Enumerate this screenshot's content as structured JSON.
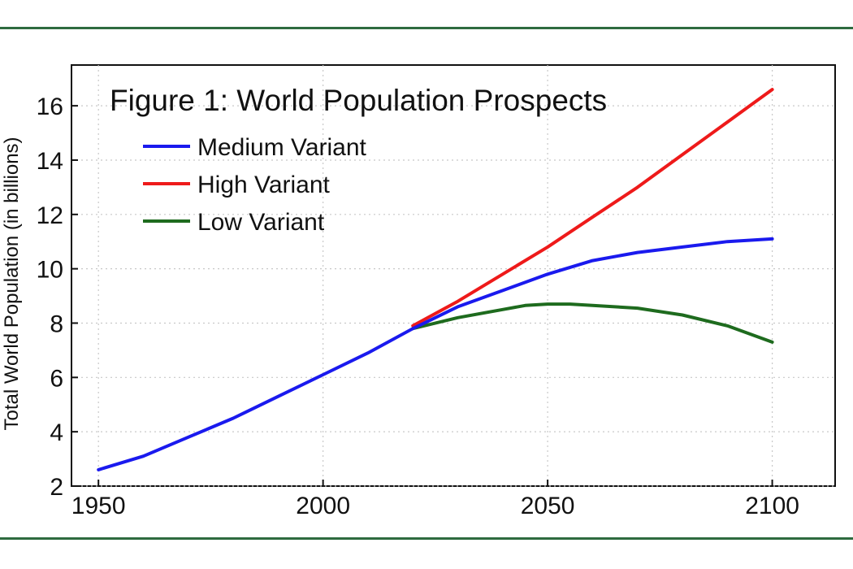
{
  "colors": {
    "frame_rule": "#2e6b3f",
    "medium": "#1a1aee",
    "high": "#ee1a1a",
    "low": "#1e6b1e",
    "grid": "#c8c8c8"
  },
  "chart_data": {
    "type": "line",
    "title": "Figure 1: World Population Prospects",
    "ylabel": "Total World Population (in billions)",
    "xlabel": "",
    "xlim": [
      1944,
      2114
    ],
    "ylim": [
      2,
      17.5
    ],
    "xticks": [
      1950,
      2000,
      2050,
      2100
    ],
    "yticks": [
      2,
      4,
      6,
      8,
      10,
      12,
      14,
      16
    ],
    "grid": true,
    "legend_position": "top-left",
    "series": [
      {
        "name": "Medium Variant",
        "color_key": "medium",
        "x": [
          1950,
          1960,
          1970,
          1980,
          1990,
          2000,
          2010,
          2020,
          2025,
          2030,
          2040,
          2050,
          2060,
          2070,
          2080,
          2090,
          2100
        ],
        "y": [
          2.6,
          3.1,
          3.8,
          4.5,
          5.3,
          6.1,
          6.9,
          7.8,
          8.2,
          8.6,
          9.2,
          9.8,
          10.3,
          10.6,
          10.8,
          11.0,
          11.1
        ]
      },
      {
        "name": "High Variant",
        "color_key": "high",
        "x": [
          2020,
          2030,
          2040,
          2050,
          2060,
          2070,
          2080,
          2090,
          2100
        ],
        "y": [
          7.9,
          8.8,
          9.8,
          10.8,
          11.9,
          13.0,
          14.2,
          15.4,
          16.6
        ]
      },
      {
        "name": "Low Variant",
        "color_key": "low",
        "x": [
          2020,
          2030,
          2040,
          2045,
          2050,
          2055,
          2060,
          2070,
          2080,
          2090,
          2100
        ],
        "y": [
          7.8,
          8.2,
          8.5,
          8.65,
          8.7,
          8.7,
          8.65,
          8.55,
          8.3,
          7.9,
          7.3
        ]
      }
    ]
  }
}
